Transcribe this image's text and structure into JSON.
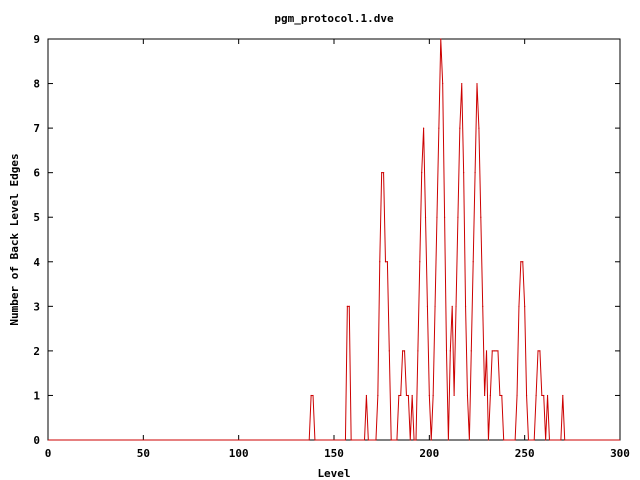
{
  "chart_data": {
    "type": "line",
    "title": "pgm_protocol.1.dve",
    "xlabel": "Level",
    "ylabel": "Number of Back Level Edges",
    "xlim": [
      0,
      300
    ],
    "ylim": [
      0,
      9
    ],
    "xticks": [
      0,
      50,
      100,
      150,
      200,
      250,
      300
    ],
    "yticks": [
      0,
      1,
      2,
      3,
      4,
      5,
      6,
      7,
      8,
      9
    ],
    "grid": false,
    "legend": "none",
    "line_color": "#cc0000",
    "series": [
      {
        "values": [
          [
            137,
            0
          ],
          [
            138,
            1
          ],
          [
            139,
            1
          ],
          [
            140,
            0
          ],
          [
            156,
            0
          ],
          [
            157,
            3
          ],
          [
            158,
            3
          ],
          [
            159,
            0
          ],
          [
            166,
            0
          ],
          [
            167,
            1
          ],
          [
            168,
            0
          ],
          [
            172,
            0
          ],
          [
            173,
            1
          ],
          [
            174,
            4
          ],
          [
            175,
            6
          ],
          [
            176,
            6
          ],
          [
            177,
            4
          ],
          [
            178,
            4
          ],
          [
            179,
            2
          ],
          [
            180,
            0
          ],
          [
            183,
            0
          ],
          [
            184,
            1
          ],
          [
            185,
            1
          ],
          [
            186,
            2
          ],
          [
            187,
            2
          ],
          [
            188,
            1
          ],
          [
            189,
            1
          ],
          [
            190,
            0
          ],
          [
            191,
            1
          ],
          [
            192,
            0
          ],
          [
            193,
            0
          ],
          [
            194,
            2
          ],
          [
            195,
            4
          ],
          [
            196,
            6
          ],
          [
            197,
            7
          ],
          [
            198,
            5
          ],
          [
            199,
            3
          ],
          [
            200,
            1
          ],
          [
            201,
            0
          ],
          [
            202,
            1
          ],
          [
            203,
            3
          ],
          [
            204,
            5
          ],
          [
            205,
            7
          ],
          [
            206,
            9
          ],
          [
            207,
            8
          ],
          [
            208,
            5
          ],
          [
            209,
            2
          ],
          [
            210,
            0
          ],
          [
            211,
            2
          ],
          [
            212,
            3
          ],
          [
            213,
            1
          ],
          [
            214,
            3
          ],
          [
            215,
            5
          ],
          [
            216,
            7
          ],
          [
            217,
            8
          ],
          [
            218,
            6
          ],
          [
            219,
            3
          ],
          [
            220,
            1
          ],
          [
            221,
            0
          ],
          [
            222,
            2
          ],
          [
            223,
            4
          ],
          [
            224,
            6
          ],
          [
            225,
            8
          ],
          [
            226,
            7
          ],
          [
            227,
            5
          ],
          [
            228,
            3
          ],
          [
            229,
            1
          ],
          [
            230,
            2
          ],
          [
            231,
            0
          ],
          [
            232,
            1
          ],
          [
            233,
            2
          ],
          [
            234,
            2
          ],
          [
            235,
            2
          ],
          [
            236,
            2
          ],
          [
            237,
            1
          ],
          [
            238,
            1
          ],
          [
            239,
            0
          ],
          [
            245,
            0
          ],
          [
            246,
            1
          ],
          [
            247,
            3
          ],
          [
            248,
            4
          ],
          [
            249,
            4
          ],
          [
            250,
            3
          ],
          [
            251,
            1
          ],
          [
            252,
            0
          ],
          [
            255,
            0
          ],
          [
            256,
            1
          ],
          [
            257,
            2
          ],
          [
            258,
            2
          ],
          [
            259,
            1
          ],
          [
            260,
            1
          ],
          [
            261,
            0
          ],
          [
            262,
            1
          ],
          [
            263,
            0
          ],
          [
            269,
            0
          ],
          [
            270,
            1
          ],
          [
            271,
            0
          ]
        ]
      }
    ]
  }
}
